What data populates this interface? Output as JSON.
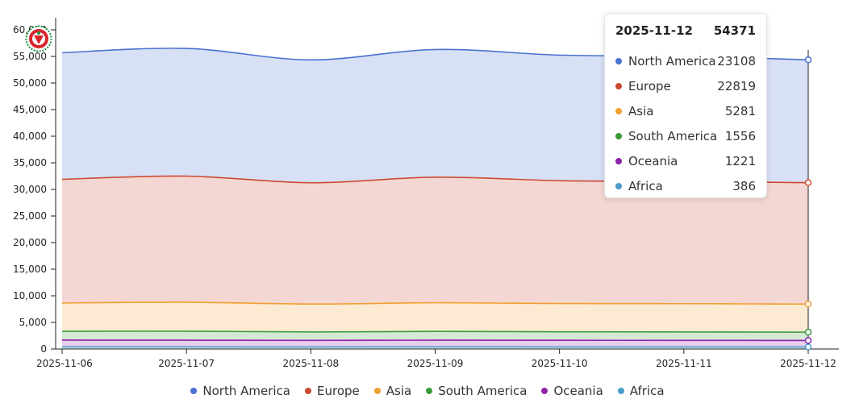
{
  "chart_data": {
    "type": "area",
    "stacked": true,
    "x": [
      "2025-11-06",
      "2025-11-07",
      "2025-11-08",
      "2025-11-09",
      "2025-11-10",
      "2025-11-11",
      "2025-11-12"
    ],
    "ylim": [
      0,
      60000
    ],
    "yticks": [
      0,
      5000,
      10000,
      15000,
      20000,
      25000,
      30000,
      35000,
      40000,
      45000,
      50000,
      55000,
      60000
    ],
    "ytick_labels": [
      "0",
      "5,000",
      "10,000",
      "15,000",
      "20,000",
      "25,000",
      "30,000",
      "35,000",
      "40,000",
      "45,000",
      "50,000",
      "55,000",
      "60,000"
    ],
    "grid": false,
    "legend_position": "bottom",
    "series": [
      {
        "name": "Africa",
        "color": "#4a9bc9",
        "values": [
          410,
          400,
          390,
          405,
          395,
          392,
          386
        ]
      },
      {
        "name": "Oceania",
        "color": "#8e24aa",
        "values": [
          1260,
          1250,
          1230,
          1250,
          1240,
          1230,
          1221
        ]
      },
      {
        "name": "South America",
        "color": "#3a9a3a",
        "values": [
          1650,
          1700,
          1580,
          1650,
          1600,
          1580,
          1556
        ]
      },
      {
        "name": "Asia",
        "color": "#f0a030",
        "values": [
          5330,
          5450,
          5250,
          5390,
          5310,
          5320,
          5281
        ]
      },
      {
        "name": "Europe",
        "color": "#cc4a30",
        "values": [
          23250,
          23700,
          22800,
          23600,
          23100,
          23000,
          22819
        ]
      },
      {
        "name": "North America",
        "color": "#4a72d0",
        "values": [
          23800,
          24000,
          23100,
          24000,
          23600,
          23500,
          23108
        ]
      }
    ]
  },
  "legend": {
    "items": [
      {
        "label": "North America",
        "color": "#4a72d0"
      },
      {
        "label": "Europe",
        "color": "#cc4a30"
      },
      {
        "label": "Asia",
        "color": "#f0a030"
      },
      {
        "label": "South America",
        "color": "#3a9a3a"
      },
      {
        "label": "Oceania",
        "color": "#8e24aa"
      },
      {
        "label": "Africa",
        "color": "#4a9bc9"
      }
    ]
  },
  "tooltip": {
    "date": "2025-11-12",
    "total": "54371",
    "rows": [
      {
        "name": "North America",
        "value": "23108",
        "color": "#4a72d0"
      },
      {
        "name": "Europe",
        "value": "22819",
        "color": "#cc4a30"
      },
      {
        "name": "Asia",
        "value": "5281",
        "color": "#f0a030"
      },
      {
        "name": "South America",
        "value": "1556",
        "color": "#3a9a3a"
      },
      {
        "name": "Oceania",
        "value": "1221",
        "color": "#8e24aa"
      },
      {
        "name": "Africa",
        "value": "386",
        "color": "#4a9bc9"
      }
    ]
  },
  "logo": {
    "icon": "emblem-logo-icon",
    "colors": [
      "#d8262b",
      "#1f8f3a"
    ]
  }
}
